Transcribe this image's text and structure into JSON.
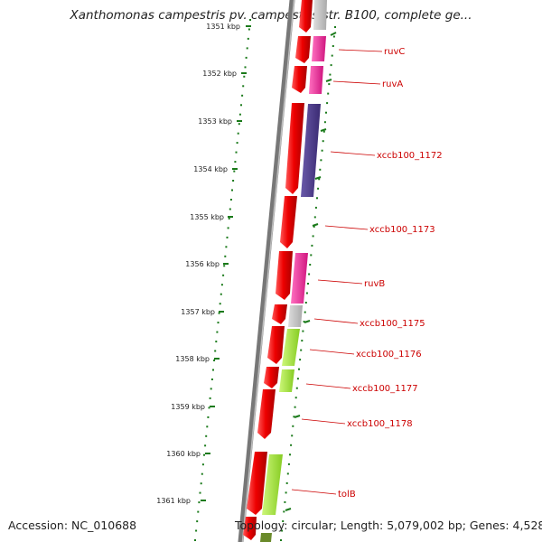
{
  "header": {
    "title": "Xanthomonas campestris pv. campestris str. B100, complete ge..."
  },
  "footer": {
    "accession": "Accession: NC_010688",
    "summary": "Topology: circular; Length: 5,079,002 bp; Genes: 4,528"
  },
  "scale_labels": [
    "1351 kbp",
    "1352 kbp",
    "1353 kbp",
    "1354 kbp",
    "1355 kbp",
    "1356 kbp",
    "1357 kbp",
    "1358 kbp",
    "1359 kbp",
    "1360 kbp",
    "1361 kbp"
  ],
  "gene_labels": [
    "ruvC",
    "ruvA",
    "xccb100_1172",
    "xccb100_1173",
    "ruvB",
    "xccb100_1175",
    "xccb100_1176",
    "xccb100_1177",
    "xccb100_1178",
    "tolB"
  ],
  "colors": {
    "backbone": "#7a7a7a",
    "cds": "#ee0000",
    "scale_dots": "#1a7a1a",
    "label_line": "#cc0000",
    "track_pink": "#ee2a9a",
    "track_purple": "#4a3a8a",
    "track_grey": "#bdbdbd",
    "track_green": "#a8e83a"
  }
}
